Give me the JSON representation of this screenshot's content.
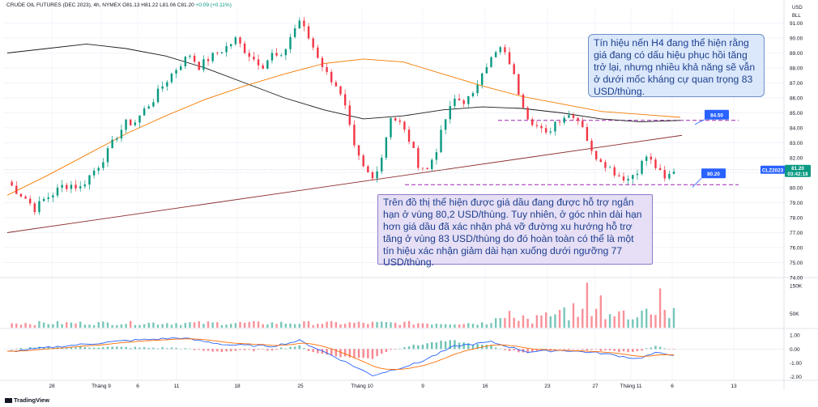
{
  "header": {
    "symbol_label": "CRUDE OIL FUTURES (DEC 2023), 4h, NYMEX",
    "ohlc_label": "O81.13 H81.22 L81.06 C81.20",
    "change_label": "+0.09 (+0.11%)"
  },
  "price_axis": {
    "currency": "USD",
    "unit": "BLL",
    "tick_labels": [
      "91.00",
      "90.00",
      "89.00",
      "88.00",
      "87.00",
      "86.00",
      "85.00",
      "84.00",
      "83.00",
      "82.00",
      "81.00",
      "80.00",
      "79.00",
      "78.00",
      "77.00",
      "76.00",
      "75.00",
      "74.00"
    ]
  },
  "volume_axis": {
    "tick_labels": [
      "150K",
      "50K"
    ]
  },
  "macd_axis": {
    "tick_labels": [
      "1.00",
      "0.00",
      "-1.00",
      "-2.00"
    ]
  },
  "time_axis": {
    "tick_labels": [
      "28",
      "Tháng 9",
      "6",
      "11",
      "18",
      "25",
      "Tháng 10",
      "9",
      "16",
      "23",
      "27",
      "Tháng 11",
      "6",
      "13"
    ]
  },
  "badges": {
    "resistance": "84.50",
    "support": "80.20",
    "symbol": "CLZ2023",
    "last_price": "81.20",
    "countdown": "03:42:18"
  },
  "notes": {
    "top_right": "Tín hiệu nến H4 đang thể hiện rằng giá đang có dấu hiệu phục hồi tăng trở lại, nhưng nhiều khả năng sẽ vẫn ở dưới mốc kháng cự quan trọng 83 USD/thùng.",
    "bottom": "Trên đồ thị thể hiện được giá dầu đang được hỗ trợ ngắn hạn ở vùng 80,2 USD/thùng. Tuy nhiên, ở góc nhìn dài hạn hơn giá dầu đã xác nhận phá vỡ đường xu hướng hỗ trợ tăng ở vùng 83 USD/thùng do đó hoàn toàn có thể là một tín hiệu xác nhận giảm dài hạn xuống dưới ngưỡng 77 USD/thùng."
  },
  "footer": {
    "brand": "TradingView"
  },
  "colors": {
    "up": "#089981",
    "down": "#f23645",
    "ma_fast": "#1b1b1b",
    "ma_slow": "#f57c00",
    "trendline": "#8b2c2c",
    "level": "#9c27b0",
    "badge": "#2962ff",
    "macd_line": "#2962ff",
    "signal_line": "#ff6d00"
  },
  "chart_data": {
    "type": "candlestick",
    "title": "CRUDE OIL FUTURES (DEC 2023), 4h, NYMEX",
    "y_unit": "USD/BLL",
    "ylim": [
      74,
      92
    ],
    "x_ticks": [
      "28",
      "Tháng 9",
      "6",
      "11",
      "18",
      "25",
      "Tháng 10",
      "9",
      "16",
      "23",
      "27",
      "Tháng 11",
      "6",
      "13"
    ],
    "close_path": [
      [
        0,
        80.4
      ],
      [
        2,
        79.8
      ],
      [
        4,
        79.3
      ],
      [
        6,
        78.6
      ],
      [
        8,
        79.2
      ],
      [
        10,
        79.6
      ],
      [
        12,
        80.1
      ],
      [
        14,
        80.2
      ],
      [
        16,
        80.0
      ],
      [
        18,
        80.8
      ],
      [
        20,
        81.5
      ],
      [
        22,
        82.4
      ],
      [
        24,
        83.5
      ],
      [
        26,
        84.3
      ],
      [
        28,
        84.4
      ],
      [
        30,
        85.2
      ],
      [
        32,
        85.9
      ],
      [
        34,
        86.8
      ],
      [
        36,
        87.6
      ],
      [
        38,
        88.3
      ],
      [
        40,
        88.9
      ],
      [
        42,
        88.1
      ],
      [
        44,
        88.6
      ],
      [
        46,
        89.0
      ],
      [
        48,
        89.4
      ],
      [
        50,
        89.9
      ],
      [
        52,
        89.2
      ],
      [
        54,
        88.6
      ],
      [
        56,
        88.2
      ],
      [
        58,
        88.9
      ],
      [
        60,
        88.6
      ],
      [
        62,
        90.1
      ],
      [
        64,
        91.2
      ],
      [
        66,
        90.0
      ],
      [
        68,
        88.8
      ],
      [
        70,
        87.6
      ],
      [
        72,
        86.9
      ],
      [
        74,
        85.3
      ],
      [
        76,
        82.6
      ],
      [
        78,
        81.3
      ],
      [
        80,
        80.6
      ],
      [
        82,
        82.1
      ],
      [
        84,
        84.8
      ],
      [
        86,
        84.3
      ],
      [
        88,
        83.2
      ],
      [
        90,
        81.6
      ],
      [
        92,
        81.2
      ],
      [
        94,
        82.6
      ],
      [
        96,
        84.6
      ],
      [
        98,
        85.9
      ],
      [
        100,
        85.8
      ],
      [
        102,
        86.1
      ],
      [
        104,
        87.9
      ],
      [
        106,
        88.6
      ],
      [
        108,
        89.3
      ],
      [
        110,
        88.4
      ],
      [
        112,
        86.4
      ],
      [
        114,
        84.8
      ],
      [
        116,
        84.1
      ],
      [
        118,
        83.5
      ],
      [
        120,
        84.4
      ],
      [
        122,
        84.8
      ],
      [
        124,
        84.9
      ],
      [
        126,
        84.2
      ],
      [
        128,
        82.3
      ],
      [
        130,
        81.9
      ],
      [
        132,
        81.3
      ],
      [
        134,
        80.8
      ],
      [
        136,
        80.6
      ],
      [
        138,
        81.2
      ],
      [
        140,
        82.1
      ],
      [
        142,
        81.4
      ],
      [
        144,
        80.5
      ],
      [
        146,
        81.2
      ]
    ],
    "series": [
      {
        "values": [
          89.0,
          89.3,
          89.6,
          89.3,
          88.8,
          88.0,
          87.0,
          86.0,
          85.2,
          84.6,
          84.8,
          85.2,
          85.4,
          85.3,
          85.0,
          84.6,
          84.4,
          84.5
        ]
      },
      {
        "values": [
          79.5,
          80.8,
          82.2,
          83.6,
          84.8,
          85.9,
          86.8,
          87.6,
          88.3,
          88.6,
          88.4,
          87.6,
          86.8,
          86.1,
          85.6,
          85.1,
          84.9,
          84.7
        ]
      }
    ],
    "levels": [
      84.5,
      80.2
    ],
    "trendline": [
      [
        0,
        77.0
      ],
      [
        146,
        83.5
      ]
    ],
    "volume_ylim": [
      0,
      170000
    ],
    "macd_ylim": [
      -2.2,
      1.3
    ]
  }
}
